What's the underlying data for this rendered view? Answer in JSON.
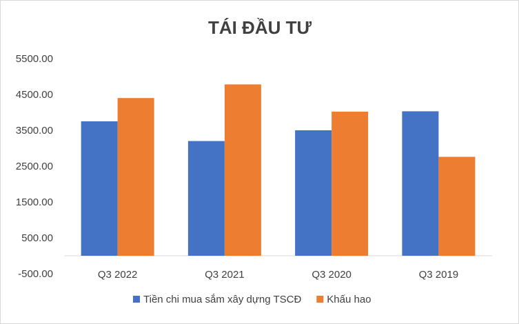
{
  "chart_data": {
    "type": "bar",
    "title": "TÁI ĐẦU TƯ",
    "categories": [
      "Q3 2022",
      "Q3 2021",
      "Q3 2020",
      "Q3 2019"
    ],
    "series": [
      {
        "name": "Tiền chi mua sắm xây dựng TSCĐ",
        "color": "#4472C4",
        "values": [
          3750,
          3200,
          3500,
          4030
        ]
      },
      {
        "name": "Khấu hao",
        "color": "#ED7D31",
        "values": [
          4400,
          4780,
          4020,
          2760
        ]
      }
    ],
    "ylim": [
      -500,
      5500
    ],
    "yticks": [
      "5500.00",
      "4500.00",
      "3500.00",
      "2500.00",
      "1500.00",
      "500.00",
      "-500.00"
    ],
    "ytick_values": [
      5500,
      4500,
      3500,
      2500,
      1500,
      500,
      -500
    ],
    "legend_position": "bottom",
    "grid": false
  }
}
